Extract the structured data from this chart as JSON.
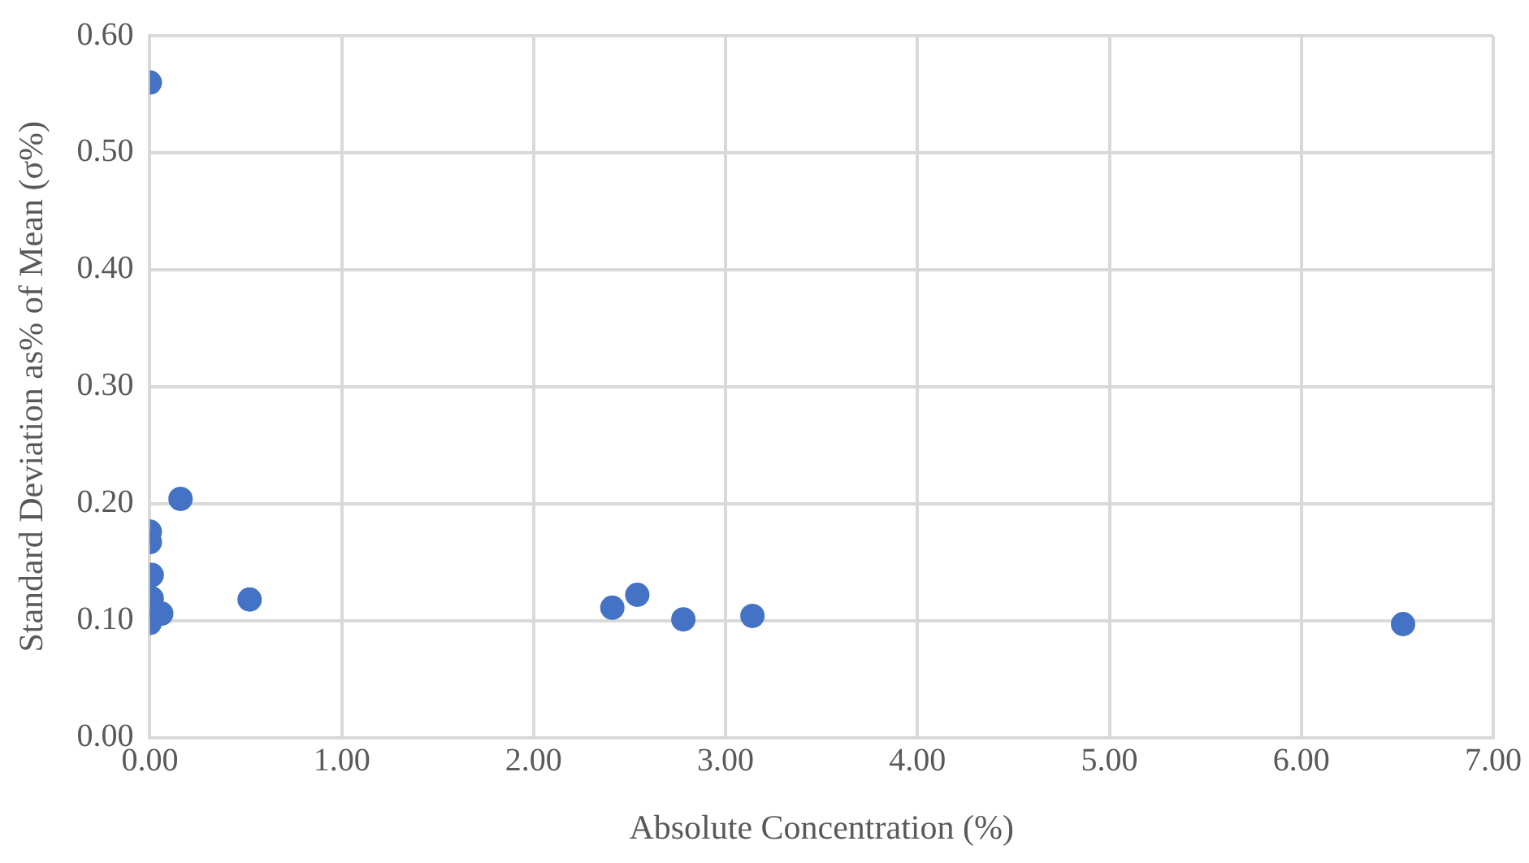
{
  "chart_data": {
    "type": "scatter",
    "xlabel": "Absolute Concentration (%)",
    "ylabel": "Standard Deviation as% of Mean (σ%)",
    "series": [
      {
        "color": "#4472c4",
        "x": [
          0.0,
          0.16,
          0.0,
          0.0,
          0.01,
          0.01,
          0.06,
          0.0,
          0.52,
          2.41,
          2.54,
          2.78,
          3.14,
          6.53
        ],
        "values": [
          0.56,
          0.204,
          0.176,
          0.167,
          0.139,
          0.119,
          0.106,
          0.098,
          0.118,
          0.111,
          0.122,
          0.101,
          0.104,
          0.097
        ]
      }
    ],
    "xlim": [
      0,
      7
    ],
    "xticks": [
      {
        "value": 0,
        "label": "0.00"
      },
      {
        "value": 1,
        "label": "1.00"
      },
      {
        "value": 2,
        "label": "2.00"
      },
      {
        "value": 3,
        "label": "3.00"
      },
      {
        "value": 4,
        "label": "4.00"
      },
      {
        "value": 5,
        "label": "5.00"
      },
      {
        "value": 6,
        "label": "6.00"
      },
      {
        "value": 7,
        "label": "7.00"
      }
    ],
    "ylim": [
      0,
      0.6
    ],
    "yticks": [
      {
        "value": 0,
        "label": "0.00"
      },
      {
        "value": 0.1,
        "label": "0.10"
      },
      {
        "value": 0.2,
        "label": "0.20"
      },
      {
        "value": 0.3,
        "label": "0.30"
      },
      {
        "value": 0.4,
        "label": "0.40"
      },
      {
        "value": 0.5,
        "label": "0.50"
      },
      {
        "value": 0.6,
        "label": "0.60"
      }
    ],
    "grid": true,
    "marker": "circle",
    "legend": false
  }
}
